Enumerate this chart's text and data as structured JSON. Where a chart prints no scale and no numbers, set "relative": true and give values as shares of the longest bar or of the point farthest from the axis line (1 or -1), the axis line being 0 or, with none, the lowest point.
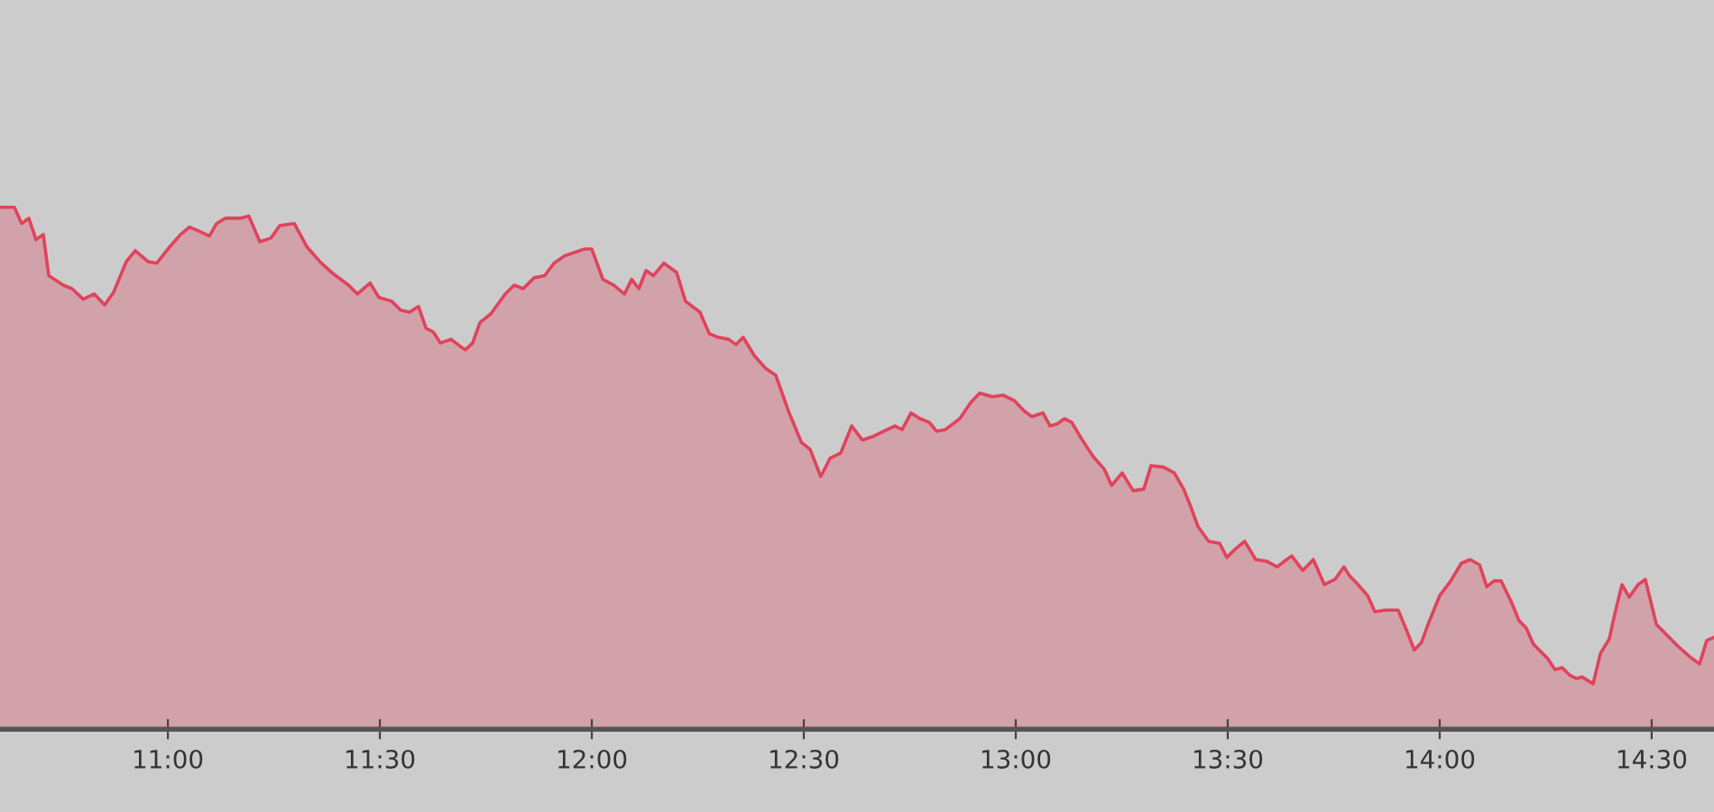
{
  "chart_data": {
    "type": "area",
    "relative": true,
    "grid": false,
    "legend": false,
    "xlim": [
      10.604,
      14.647
    ],
    "xticks": [
      {
        "value": 11,
        "label": "11:00"
      },
      {
        "value": 11.5,
        "label": "11:30"
      },
      {
        "value": 12,
        "label": "12:00"
      },
      {
        "value": 12.5,
        "label": "12:30"
      },
      {
        "value": 13,
        "label": "13:00"
      },
      {
        "value": 13.5,
        "label": "13:30"
      },
      {
        "value": 14,
        "label": "14:00"
      },
      {
        "value": 14.5,
        "label": "14:30"
      }
    ],
    "series": [
      {
        "color": "#e0435c",
        "x": [
          10.604,
          10.638,
          10.655,
          10.672,
          10.689,
          10.706,
          10.719,
          10.753,
          10.774,
          10.8,
          10.826,
          10.851,
          10.872,
          10.902,
          10.923,
          10.953,
          10.974,
          11.0,
          11.03,
          11.051,
          11.072,
          11.098,
          11.115,
          11.136,
          11.17,
          11.191,
          11.217,
          11.243,
          11.264,
          11.298,
          11.328,
          11.362,
          11.391,
          11.426,
          11.447,
          11.477,
          11.498,
          11.528,
          11.549,
          11.57,
          11.591,
          11.609,
          11.626,
          11.643,
          11.668,
          11.689,
          11.702,
          11.719,
          11.736,
          11.762,
          11.796,
          11.817,
          11.838,
          11.864,
          11.889,
          11.911,
          11.936,
          11.957,
          11.983,
          12.0,
          12.026,
          12.051,
          12.077,
          12.094,
          12.111,
          12.128,
          12.145,
          12.17,
          12.2,
          12.221,
          12.255,
          12.277,
          12.298,
          12.323,
          12.34,
          12.357,
          12.383,
          12.409,
          12.434,
          12.464,
          12.494,
          12.515,
          12.54,
          12.562,
          12.587,
          12.613,
          12.638,
          12.664,
          12.689,
          12.715,
          12.732,
          12.753,
          12.774,
          12.796,
          12.813,
          12.834,
          12.868,
          12.894,
          12.915,
          12.945,
          12.97,
          12.996,
          13.021,
          13.038,
          13.064,
          13.081,
          13.098,
          13.115,
          13.132,
          13.157,
          13.183,
          13.209,
          13.226,
          13.251,
          13.277,
          13.302,
          13.319,
          13.349,
          13.374,
          13.396,
          13.413,
          13.43,
          13.455,
          13.481,
          13.498,
          13.519,
          13.54,
          13.566,
          13.591,
          13.617,
          13.634,
          13.651,
          13.677,
          13.702,
          13.728,
          13.753,
          13.774,
          13.787,
          13.804,
          13.83,
          13.847,
          13.872,
          13.902,
          13.923,
          13.94,
          13.957,
          13.974,
          14.0,
          14.026,
          14.051,
          14.072,
          14.094,
          14.111,
          14.128,
          14.145,
          14.17,
          14.187,
          14.204,
          14.221,
          14.238,
          14.255,
          14.272,
          14.289,
          14.306,
          14.323,
          14.336,
          14.362,
          14.379,
          14.4,
          14.413,
          14.43,
          14.447,
          14.468,
          14.485,
          14.511,
          14.536,
          14.562,
          14.591,
          14.613,
          14.63,
          14.647
        ],
        "values": [
          1.0,
          1.0,
          0.969,
          0.979,
          0.938,
          0.948,
          0.869,
          0.851,
          0.844,
          0.824,
          0.834,
          0.813,
          0.837,
          0.896,
          0.917,
          0.896,
          0.893,
          0.92,
          0.948,
          0.962,
          0.955,
          0.945,
          0.969,
          0.979,
          0.979,
          0.983,
          0.934,
          0.941,
          0.965,
          0.969,
          0.924,
          0.893,
          0.872,
          0.851,
          0.834,
          0.855,
          0.827,
          0.82,
          0.803,
          0.799,
          0.81,
          0.768,
          0.761,
          0.74,
          0.747,
          0.734,
          0.727,
          0.74,
          0.779,
          0.796,
          0.834,
          0.851,
          0.844,
          0.865,
          0.869,
          0.893,
          0.907,
          0.913,
          0.92,
          0.92,
          0.862,
          0.851,
          0.834,
          0.862,
          0.844,
          0.879,
          0.869,
          0.893,
          0.875,
          0.82,
          0.799,
          0.758,
          0.751,
          0.747,
          0.737,
          0.751,
          0.716,
          0.692,
          0.678,
          0.609,
          0.55,
          0.536,
          0.484,
          0.519,
          0.529,
          0.581,
          0.554,
          0.561,
          0.571,
          0.581,
          0.574,
          0.606,
          0.595,
          0.588,
          0.571,
          0.574,
          0.595,
          0.626,
          0.644,
          0.637,
          0.64,
          0.63,
          0.609,
          0.599,
          0.606,
          0.581,
          0.585,
          0.595,
          0.588,
          0.554,
          0.522,
          0.498,
          0.467,
          0.491,
          0.457,
          0.46,
          0.505,
          0.502,
          0.491,
          0.46,
          0.426,
          0.388,
          0.36,
          0.356,
          0.329,
          0.346,
          0.36,
          0.325,
          0.322,
          0.311,
          0.322,
          0.332,
          0.304,
          0.325,
          0.277,
          0.287,
          0.311,
          0.294,
          0.28,
          0.256,
          0.225,
          0.228,
          0.228,
          0.187,
          0.152,
          0.166,
          0.204,
          0.256,
          0.284,
          0.318,
          0.325,
          0.315,
          0.273,
          0.284,
          0.284,
          0.242,
          0.208,
          0.194,
          0.163,
          0.149,
          0.135,
          0.114,
          0.118,
          0.104,
          0.097,
          0.1,
          0.087,
          0.145,
          0.173,
          0.221,
          0.277,
          0.253,
          0.277,
          0.287,
          0.201,
          0.18,
          0.159,
          0.138,
          0.125,
          0.17,
          0.176
        ]
      }
    ]
  }
}
